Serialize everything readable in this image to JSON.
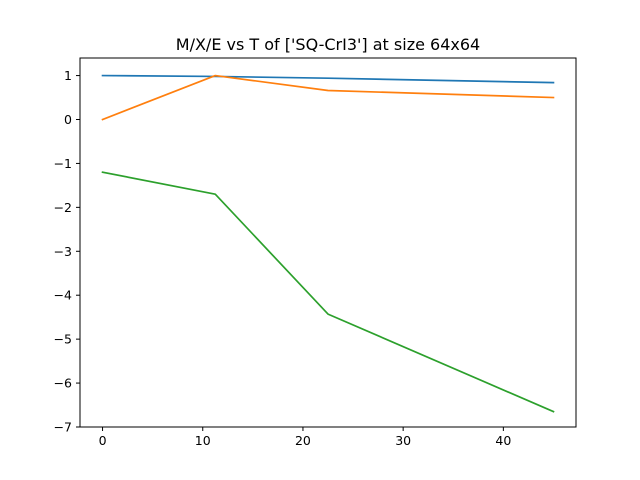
{
  "chart_data": {
    "type": "line",
    "title": "M/X/E vs T of ['SQ-CrI3'] at size 64x64",
    "xlabel": "",
    "ylabel": "",
    "xlim": [
      -2.25,
      47.25
    ],
    "ylim": [
      -7.0,
      1.4
    ],
    "xticks": [
      0,
      10,
      20,
      30,
      40
    ],
    "yticks": [
      1,
      0,
      -1,
      -2,
      -3,
      -4,
      -5,
      -6,
      -7
    ],
    "x": [
      0,
      11.25,
      22.5,
      45
    ],
    "grid": false,
    "legend": "none",
    "series": [
      {
        "color": "#1f77b4",
        "values": [
          1.0,
          0.98,
          0.94,
          0.84
        ]
      },
      {
        "color": "#ff7f0e",
        "values": [
          0.0,
          1.0,
          0.66,
          0.5
        ]
      },
      {
        "color": "#2ca02c",
        "values": [
          -1.2,
          -1.7,
          -4.43,
          -6.65
        ]
      }
    ]
  }
}
